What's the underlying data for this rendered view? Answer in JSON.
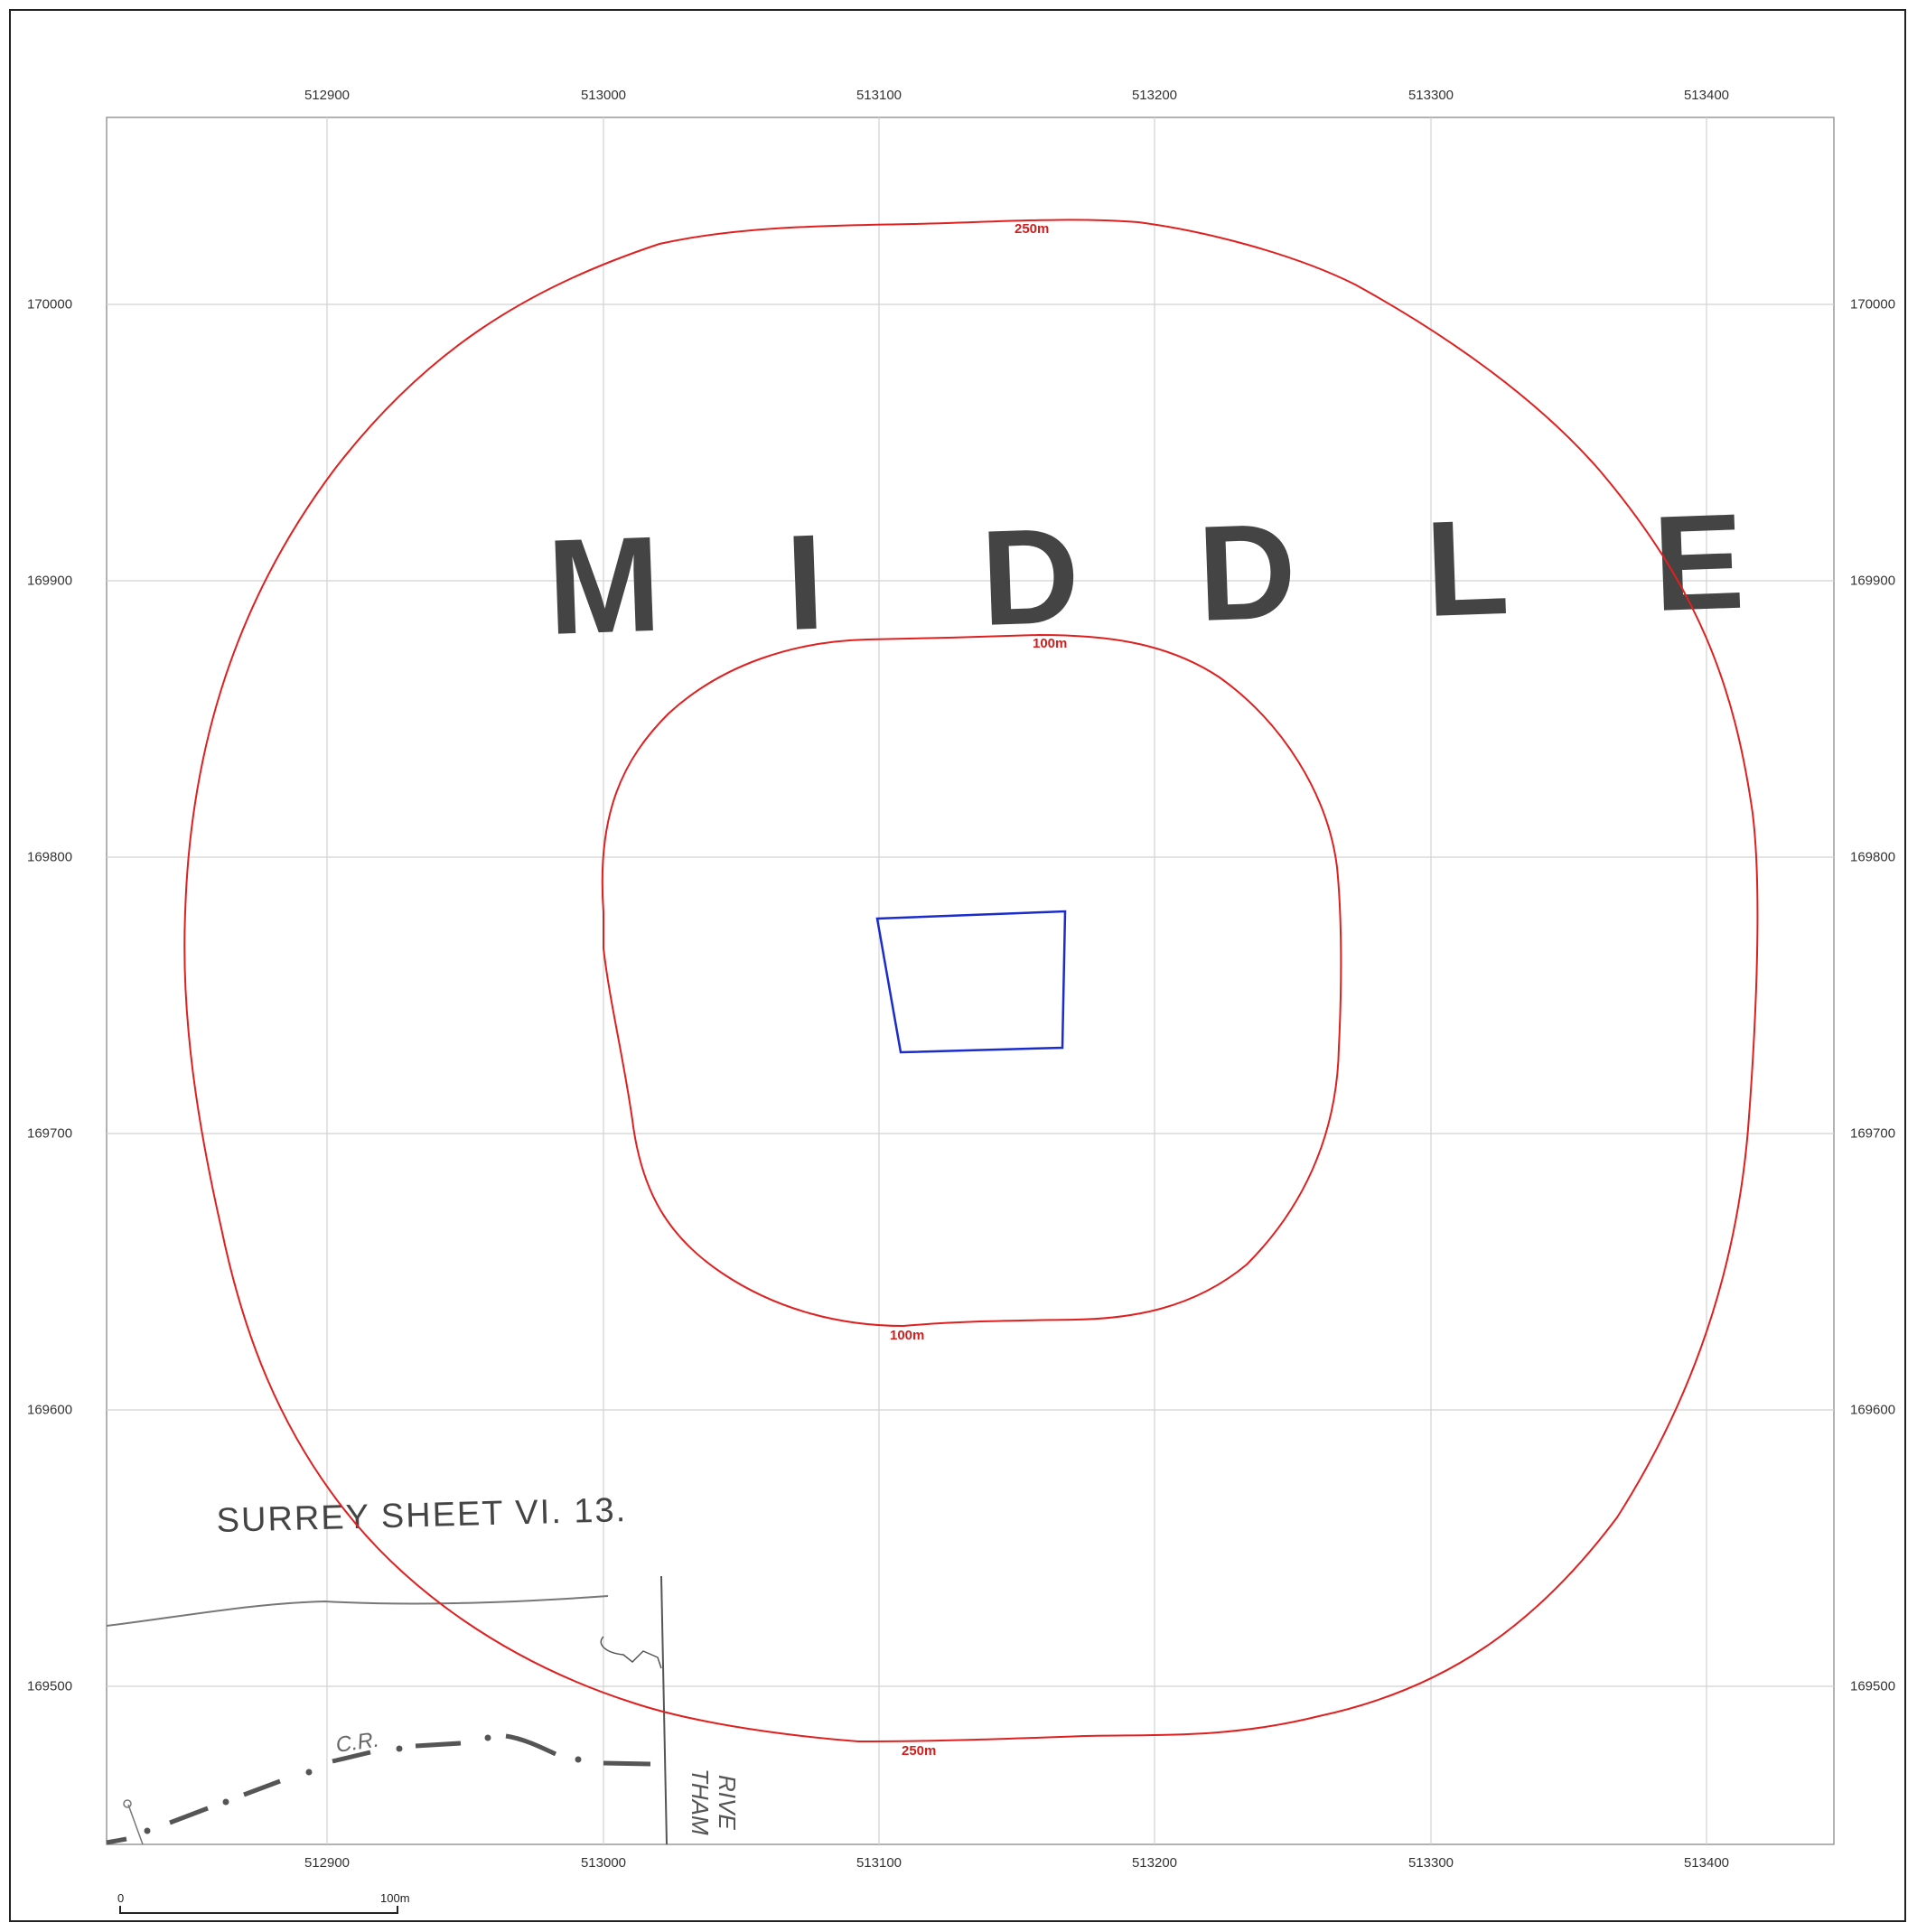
{
  "grid": {
    "eastings": [
      "512900",
      "513000",
      "513100",
      "513200",
      "513300",
      "513400"
    ],
    "northings": [
      "170000",
      "169900",
      "169800",
      "169700",
      "169600",
      "169500"
    ]
  },
  "map_text": {
    "middle_letters": [
      "M",
      "I",
      "D",
      "D",
      "L",
      "E"
    ],
    "sheet": "SURREY SHEET VI. 13.",
    "cr": "C.R.",
    "river_line1": "RIVE",
    "river_line2": "THAM"
  },
  "buffers": {
    "outer_top": "250m",
    "outer_bottom": "250m",
    "inner_top": "100m",
    "inner_bottom": "100m"
  },
  "scale_bar": {
    "start": "0",
    "end": "100m"
  },
  "colors": {
    "buffer": "#e02020",
    "site": "#1a2ccc",
    "grid": "#c8c8c8",
    "basemap": "#555555"
  }
}
